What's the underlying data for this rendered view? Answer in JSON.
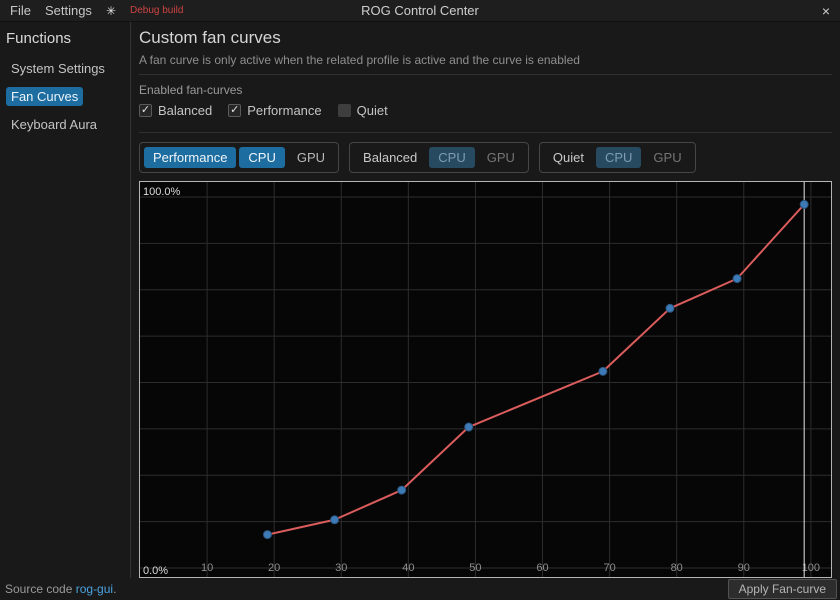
{
  "colors": {
    "accent": "#1d6da1",
    "accent_dim_bg": "#284a60",
    "accent_dim_text": "#7e9cb4",
    "debug": "#cc4444",
    "link": "#4aa3df"
  },
  "titlebar": {
    "menu_file": "File",
    "menu_settings": "Settings",
    "theme_icon": "✳",
    "debug_label": "Debug build",
    "title": "ROG Control Center",
    "close_icon": "×"
  },
  "sidebar": {
    "header": "Functions",
    "items": [
      {
        "label": "System Settings",
        "active": false
      },
      {
        "label": "Fan Curves",
        "active": true
      },
      {
        "label": "Keyboard Aura",
        "active": false
      }
    ]
  },
  "content": {
    "title": "Custom fan curves",
    "subtitle": "A fan curve is only active when the related profile is active and the curve is enabled",
    "enabled_heading": "Enabled fan-curves",
    "checkboxes": [
      {
        "label": "Balanced",
        "checked": true
      },
      {
        "label": "Performance",
        "checked": true
      },
      {
        "label": "Quiet",
        "checked": false
      }
    ],
    "profile_groups": [
      {
        "name": "Performance",
        "active": true,
        "cpu_label": "CPU",
        "gpu_label": "GPU",
        "cpu_selected": true,
        "gpu_selected": false
      },
      {
        "name": "Balanced",
        "active": false,
        "cpu_label": "CPU",
        "gpu_label": "GPU",
        "cpu_selected": true,
        "gpu_selected": false
      },
      {
        "name": "Quiet",
        "active": false,
        "cpu_label": "CPU",
        "gpu_label": "GPU",
        "cpu_selected": true,
        "gpu_selected": false
      }
    ]
  },
  "chart_data": {
    "type": "line",
    "x": [
      19,
      29,
      39,
      49,
      69,
      79,
      89,
      99
    ],
    "values": [
      9,
      13,
      21,
      38,
      53,
      70,
      78,
      98
    ],
    "x_ticks": [
      10,
      20,
      30,
      40,
      50,
      60,
      70,
      80,
      90,
      100
    ],
    "xlim": [
      0,
      103
    ],
    "ylim": [
      0,
      100
    ],
    "y_gridline_step_pct": 12.5,
    "y_top_label": "100.0%",
    "y_bottom_label": "0.0%",
    "grid": true,
    "legend": "none",
    "line_color": "#da5c5c",
    "point_color": "#3e7ab5",
    "point_stroke": "#2a5580",
    "grid_color": "#2d2d2d",
    "tick_color": "#8f8f8f",
    "label_color": "#dcdcdc",
    "cursor_color": "#e6e6e6"
  },
  "footer": {
    "source_prefix": "Source code ",
    "source_link": "rog-gui",
    "source_suffix": ".",
    "apply_button": "Apply Fan-curve"
  }
}
